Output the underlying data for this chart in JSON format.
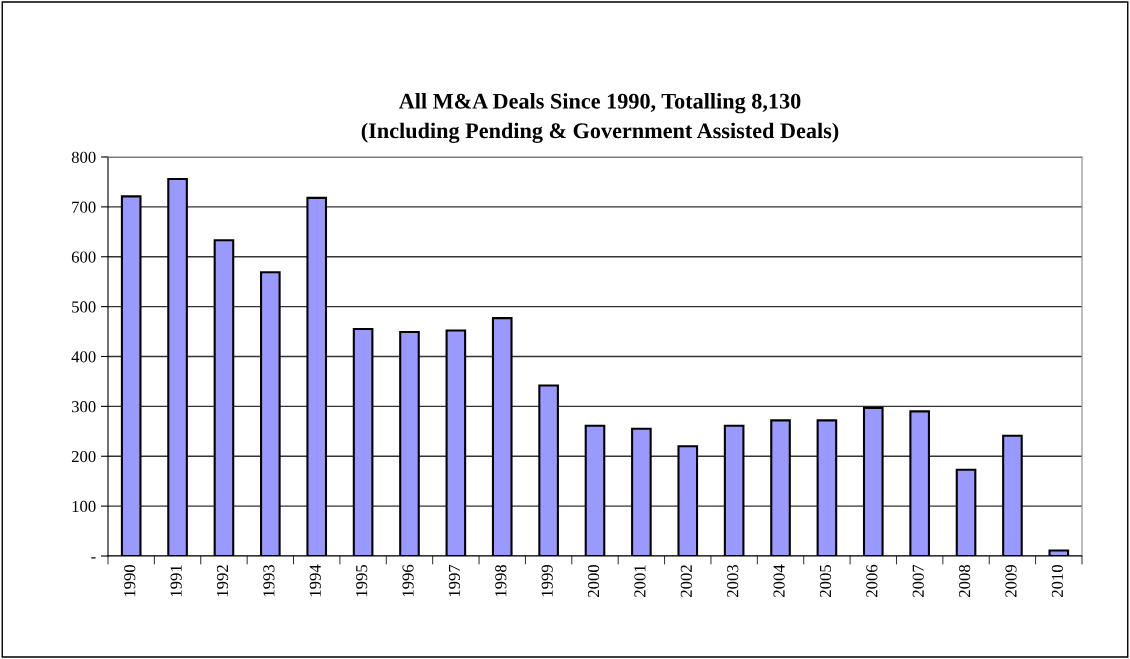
{
  "chart_data": {
    "type": "bar",
    "title": "All M&A Deals Since 1990, Totalling 8,130\n(Including Pending & Government Assisted Deals)",
    "categories": [
      "1990",
      "1991",
      "1992",
      "1993",
      "1994",
      "1995",
      "1996",
      "1997",
      "1998",
      "1999",
      "2000",
      "2001",
      "2002",
      "2003",
      "2004",
      "2005",
      "2006",
      "2007",
      "2008",
      "2009",
      "2010"
    ],
    "values": [
      721,
      756,
      633,
      569,
      718,
      455,
      449,
      452,
      477,
      342,
      261,
      255,
      220,
      261,
      272,
      272,
      297,
      290,
      173,
      241,
      11
    ],
    "color": "#9999ff",
    "ylim": [
      0,
      800
    ],
    "yticks": [
      {
        "value": 0,
        "label": "-"
      },
      100,
      200,
      300,
      400,
      500,
      600,
      700,
      800
    ],
    "grid": "y"
  }
}
